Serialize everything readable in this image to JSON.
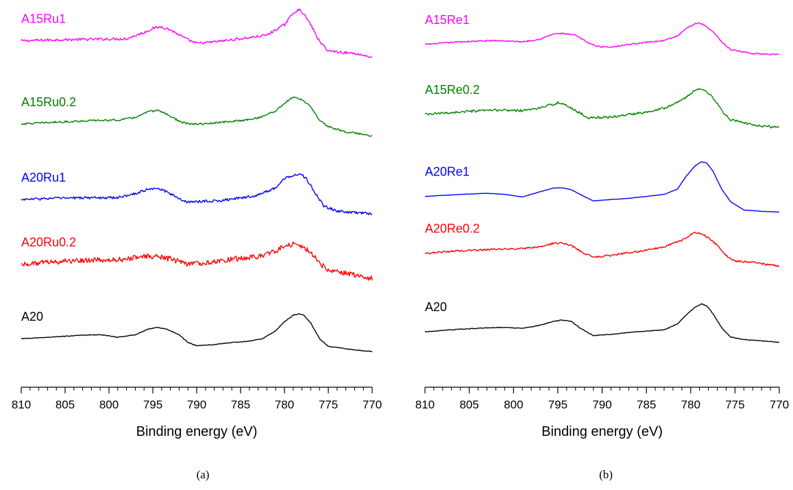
{
  "chart_data": [
    {
      "type": "line",
      "panel_caption": "(a)",
      "xlabel": "Binding energy (eV)",
      "ylabel": "",
      "xlim": [
        810,
        770
      ],
      "x_ticks": [
        810,
        805,
        800,
        795,
        790,
        785,
        780,
        775,
        770
      ],
      "grid": false,
      "series": [
        {
          "name": "A15Ru1",
          "color": "#ff00ff",
          "noise": 0.05,
          "points": [
            [
              810,
              0.88
            ],
            [
              806,
              0.92
            ],
            [
              802,
              0.94
            ],
            [
              798,
              0.96
            ],
            [
              796,
              1.2
            ],
            [
              795,
              1.36
            ],
            [
              794,
              1.42
            ],
            [
              793,
              1.3
            ],
            [
              791,
              0.92
            ],
            [
              790,
              0.78
            ],
            [
              788,
              0.84
            ],
            [
              786,
              0.92
            ],
            [
              784,
              1.0
            ],
            [
              782,
              1.1
            ],
            [
              780,
              1.5
            ],
            [
              779,
              1.95
            ],
            [
              778.4,
              2.08
            ],
            [
              778,
              2.0
            ],
            [
              777,
              1.5
            ],
            [
              776,
              0.85
            ],
            [
              775,
              0.5
            ],
            [
              773,
              0.42
            ],
            [
              772,
              0.4
            ],
            [
              770,
              0.25
            ]
          ]
        },
        {
          "name": "A15Ru0.2",
          "color": "#008000",
          "noise": 0.035,
          "points": [
            [
              810,
              0.45
            ],
            [
              806,
              0.52
            ],
            [
              802,
              0.58
            ],
            [
              799,
              0.6
            ],
            [
              797,
              0.7
            ],
            [
              795.5,
              0.92
            ],
            [
              794.5,
              0.98
            ],
            [
              793.5,
              0.85
            ],
            [
              792,
              0.55
            ],
            [
              791,
              0.45
            ],
            [
              789,
              0.45
            ],
            [
              787,
              0.52
            ],
            [
              785,
              0.58
            ],
            [
              783,
              0.68
            ],
            [
              781,
              0.95
            ],
            [
              780,
              1.25
            ],
            [
              779,
              1.48
            ],
            [
              778.5,
              1.45
            ],
            [
              778,
              1.38
            ],
            [
              777,
              1.1
            ],
            [
              776,
              0.6
            ],
            [
              775,
              0.35
            ],
            [
              773,
              0.15
            ],
            [
              770,
              0.0
            ]
          ]
        },
        {
          "name": "A20Ru1",
          "color": "#0000ff",
          "noise": 0.05,
          "points": [
            [
              810,
              0.55
            ],
            [
              806,
              0.6
            ],
            [
              802,
              0.62
            ],
            [
              799,
              0.62
            ],
            [
              797,
              0.78
            ],
            [
              795.5,
              0.95
            ],
            [
              794.5,
              1.0
            ],
            [
              793.5,
              0.85
            ],
            [
              792,
              0.58
            ],
            [
              791,
              0.45
            ],
            [
              789,
              0.48
            ],
            [
              787,
              0.52
            ],
            [
              785,
              0.6
            ],
            [
              783,
              0.72
            ],
            [
              781,
              1.0
            ],
            [
              780,
              1.35
            ],
            [
              779,
              1.5
            ],
            [
              778.2,
              1.55
            ],
            [
              777.5,
              1.35
            ],
            [
              776.5,
              0.8
            ],
            [
              775.5,
              0.3
            ],
            [
              774,
              0.1
            ],
            [
              772,
              0.05
            ],
            [
              770,
              0.0
            ]
          ]
        },
        {
          "name": "A20Ru0.2",
          "color": "#ff0000",
          "noise": 0.1,
          "points": [
            [
              810,
              0.75
            ],
            [
              806,
              0.85
            ],
            [
              803,
              0.9
            ],
            [
              800,
              0.9
            ],
            [
              798,
              0.95
            ],
            [
              796,
              1.05
            ],
            [
              794.5,
              1.05
            ],
            [
              793,
              0.95
            ],
            [
              791,
              0.75
            ],
            [
              789,
              0.8
            ],
            [
              787,
              0.9
            ],
            [
              785,
              0.98
            ],
            [
              783,
              1.05
            ],
            [
              781,
              1.25
            ],
            [
              780,
              1.45
            ],
            [
              779,
              1.52
            ],
            [
              778,
              1.45
            ],
            [
              777,
              1.2
            ],
            [
              776,
              0.8
            ],
            [
              775,
              0.5
            ],
            [
              773,
              0.4
            ],
            [
              770,
              0.2
            ]
          ]
        },
        {
          "name": "A20",
          "color": "#000000",
          "noise": 0.012,
          "points": [
            [
              810,
              0.55
            ],
            [
              807,
              0.6
            ],
            [
              803,
              0.68
            ],
            [
              801,
              0.7
            ],
            [
              799,
              0.6
            ],
            [
              797,
              0.7
            ],
            [
              795.5,
              0.92
            ],
            [
              794.5,
              0.98
            ],
            [
              793.5,
              0.92
            ],
            [
              792,
              0.7
            ],
            [
              791,
              0.4
            ],
            [
              790,
              0.28
            ],
            [
              788,
              0.32
            ],
            [
              786,
              0.4
            ],
            [
              784,
              0.45
            ],
            [
              782.5,
              0.55
            ],
            [
              781,
              0.85
            ],
            [
              780,
              1.2
            ],
            [
              779,
              1.45
            ],
            [
              778.4,
              1.5
            ],
            [
              777.8,
              1.45
            ],
            [
              777,
              1.15
            ],
            [
              776,
              0.55
            ],
            [
              775,
              0.25
            ],
            [
              772,
              0.12
            ],
            [
              770,
              0.05
            ]
          ]
        }
      ]
    },
    {
      "type": "line",
      "panel_caption": "(b)",
      "xlabel": "Binding energy (eV)",
      "ylabel": "",
      "xlim": [
        810,
        770
      ],
      "x_ticks": [
        810,
        805,
        800,
        795,
        790,
        785,
        780,
        775,
        770
      ],
      "grid": false,
      "series": [
        {
          "name": "A15Re1",
          "color": "#ff00ff",
          "noise": 0.025,
          "points": [
            [
              810,
              0.4
            ],
            [
              806,
              0.5
            ],
            [
              802,
              0.55
            ],
            [
              799,
              0.5
            ],
            [
              797,
              0.6
            ],
            [
              795.5,
              0.8
            ],
            [
              794.5,
              0.82
            ],
            [
              793,
              0.75
            ],
            [
              791.5,
              0.45
            ],
            [
              790.5,
              0.32
            ],
            [
              789,
              0.3
            ],
            [
              787,
              0.4
            ],
            [
              785,
              0.48
            ],
            [
              783,
              0.55
            ],
            [
              781.5,
              0.72
            ],
            [
              780.5,
              1.0
            ],
            [
              779.5,
              1.2
            ],
            [
              779,
              1.22
            ],
            [
              778.5,
              1.15
            ],
            [
              777.5,
              0.9
            ],
            [
              776.5,
              0.5
            ],
            [
              775.5,
              0.2
            ],
            [
              773,
              0.05
            ],
            [
              770,
              0.0
            ]
          ]
        },
        {
          "name": "A15Re0.2",
          "color": "#008000",
          "noise": 0.045,
          "points": [
            [
              810,
              0.55
            ],
            [
              806,
              0.65
            ],
            [
              802,
              0.72
            ],
            [
              799,
              0.7
            ],
            [
              797,
              0.8
            ],
            [
              795.5,
              0.95
            ],
            [
              795,
              1.0
            ],
            [
              794,
              0.9
            ],
            [
              792.5,
              0.6
            ],
            [
              791.5,
              0.42
            ],
            [
              789,
              0.45
            ],
            [
              787,
              0.55
            ],
            [
              785,
              0.65
            ],
            [
              783,
              0.8
            ],
            [
              781,
              1.1
            ],
            [
              780,
              1.35
            ],
            [
              779.2,
              1.55
            ],
            [
              778.5,
              1.5
            ],
            [
              777.5,
              1.2
            ],
            [
              776.5,
              0.7
            ],
            [
              775.5,
              0.35
            ],
            [
              773,
              0.15
            ],
            [
              770,
              0.05
            ]
          ]
        },
        {
          "name": "A20Re1",
          "color": "#0000ff",
          "noise": 0.006,
          "points": [
            [
              810,
              0.22
            ],
            [
              806,
              0.3
            ],
            [
              803,
              0.34
            ],
            [
              801,
              0.3
            ],
            [
              799,
              0.2
            ],
            [
              797,
              0.4
            ],
            [
              795.5,
              0.54
            ],
            [
              794.5,
              0.55
            ],
            [
              793.5,
              0.48
            ],
            [
              792.5,
              0.3
            ],
            [
              791,
              0.05
            ],
            [
              789,
              0.1
            ],
            [
              787,
              0.15
            ],
            [
              785,
              0.22
            ],
            [
              783,
              0.3
            ],
            [
              781.5,
              0.5
            ],
            [
              780.5,
              1.0
            ],
            [
              779.5,
              1.4
            ],
            [
              778.8,
              1.55
            ],
            [
              778.2,
              1.5
            ],
            [
              777.5,
              1.2
            ],
            [
              776.5,
              0.5
            ],
            [
              775.5,
              0.02
            ],
            [
              774,
              -0.3
            ],
            [
              772,
              -0.35
            ],
            [
              770,
              -0.38
            ]
          ]
        },
        {
          "name": "A20Re0.2",
          "color": "#ff0000",
          "noise": 0.035,
          "points": [
            [
              810,
              0.8
            ],
            [
              806,
              0.9
            ],
            [
              802,
              0.95
            ],
            [
              799,
              0.98
            ],
            [
              797,
              1.05
            ],
            [
              795.5,
              1.18
            ],
            [
              794.5,
              1.2
            ],
            [
              793.5,
              1.1
            ],
            [
              792,
              0.8
            ],
            [
              791,
              0.65
            ],
            [
              789,
              0.72
            ],
            [
              787,
              0.82
            ],
            [
              785,
              0.92
            ],
            [
              783,
              1.05
            ],
            [
              781,
              1.3
            ],
            [
              780,
              1.52
            ],
            [
              779.5,
              1.6
            ],
            [
              778.8,
              1.55
            ],
            [
              778,
              1.4
            ],
            [
              777,
              1.1
            ],
            [
              776,
              0.7
            ],
            [
              775,
              0.5
            ],
            [
              773,
              0.45
            ],
            [
              770,
              0.3
            ]
          ]
        },
        {
          "name": "A20",
          "color": "#000000",
          "noise": 0.012,
          "points": [
            [
              810,
              0.55
            ],
            [
              806,
              0.65
            ],
            [
              803,
              0.7
            ],
            [
              801,
              0.72
            ],
            [
              799,
              0.68
            ],
            [
              797,
              0.8
            ],
            [
              795.5,
              0.95
            ],
            [
              794.5,
              1.0
            ],
            [
              793.5,
              0.95
            ],
            [
              792.5,
              0.7
            ],
            [
              791,
              0.4
            ],
            [
              789,
              0.45
            ],
            [
              787,
              0.52
            ],
            [
              785,
              0.58
            ],
            [
              783,
              0.62
            ],
            [
              781.5,
              0.85
            ],
            [
              780.5,
              1.2
            ],
            [
              779.5,
              1.5
            ],
            [
              778.8,
              1.62
            ],
            [
              778.2,
              1.55
            ],
            [
              777.5,
              1.25
            ],
            [
              776.5,
              0.7
            ],
            [
              775.5,
              0.35
            ],
            [
              774,
              0.25
            ],
            [
              772,
              0.2
            ],
            [
              770,
              0.15
            ]
          ]
        }
      ]
    }
  ]
}
